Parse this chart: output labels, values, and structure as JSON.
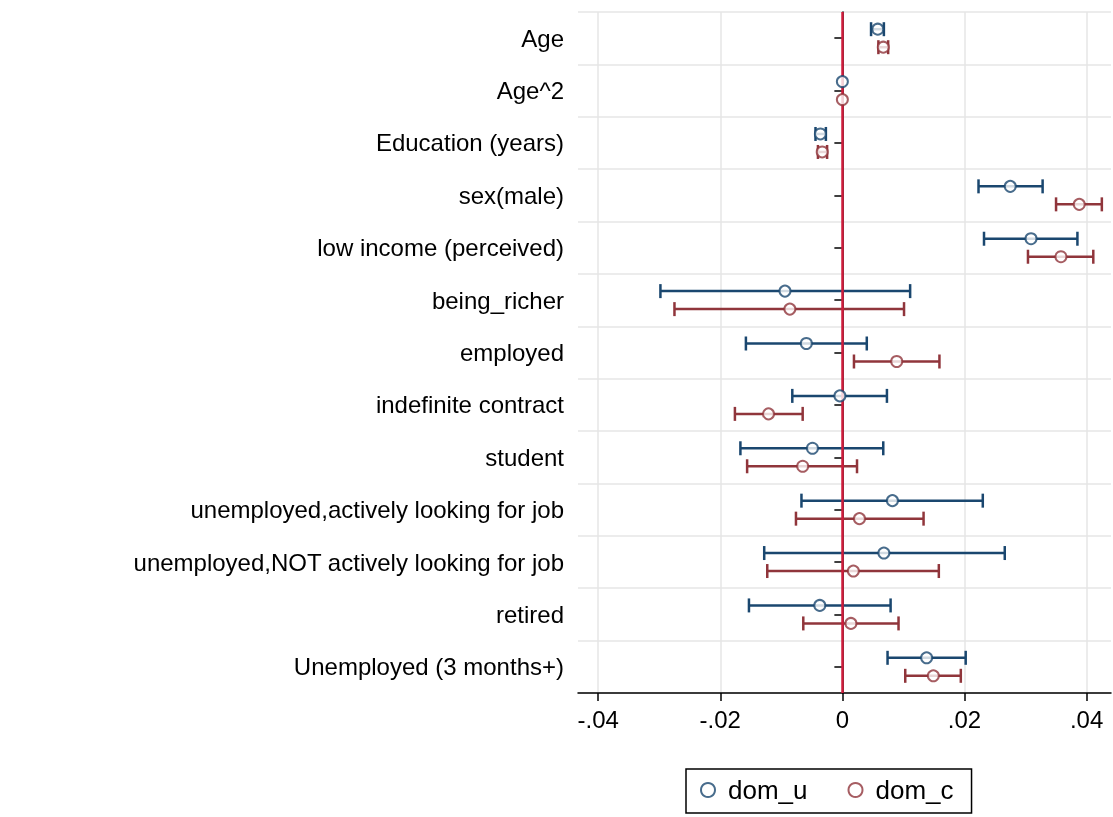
{
  "chart_data": {
    "type": "scatter",
    "orientation": "horizontal",
    "categories": [
      "Age",
      "Age^2",
      "Education (years)",
      "sex(male)",
      "low income (perceived)",
      "being_richer",
      "employed",
      "indefinite contract",
      "student",
      "unemployed,actively looking for job",
      "unemployed,NOT actively looking for job",
      "retired",
      "Unemployed (3 months+)"
    ],
    "series": [
      {
        "name": "dom_u",
        "color": "#1a476f",
        "values": [
          0.0058,
          0,
          -0.0036,
          0.0275,
          0.0309,
          -0.0094,
          -0.0059,
          -0.0004,
          -0.0049,
          0.0082,
          0.0068,
          -0.0037,
          0.0138
        ],
        "errors": [
          [
            0.0047,
            0.0068
          ],
          null,
          [
            -0.0044,
            -0.0027
          ],
          [
            0.0223,
            0.0328
          ],
          [
            0.0232,
            0.0385
          ],
          [
            -0.0298,
            0.0111
          ],
          [
            -0.0158,
            0.004
          ],
          [
            -0.0082,
            0.0073
          ],
          [
            -0.0167,
            0.0067
          ],
          [
            -0.0067,
            0.023
          ],
          [
            -0.0128,
            0.0266
          ],
          [
            -0.0153,
            0.0079
          ],
          [
            0.0074,
            0.0202
          ]
        ]
      },
      {
        "name": "dom_c",
        "color": "#90353b",
        "values": [
          0.0067,
          0,
          -0.0033,
          0.0388,
          0.0358,
          -0.0086,
          0.0089,
          -0.0121,
          -0.0065,
          0.0028,
          0.0018,
          0.0014,
          0.0149
        ],
        "errors": [
          [
            0.0059,
            0.0075
          ],
          null,
          [
            -0.004,
            -0.0025
          ],
          [
            0.035,
            0.0425
          ],
          [
            0.0304,
            0.0411
          ],
          [
            -0.0275,
            0.0101
          ],
          [
            0.0019,
            0.0159
          ],
          [
            -0.0176,
            -0.0065
          ],
          [
            -0.0156,
            0.0024
          ],
          [
            -0.0076,
            0.0133
          ],
          [
            -0.0123,
            0.0158
          ],
          [
            -0.0064,
            0.0092
          ],
          [
            0.0103,
            0.0194
          ]
        ]
      }
    ],
    "xlim": [
      -0.0433,
      0.044
    ],
    "xticks": [
      {
        "value": -0.04,
        "label": "-.04"
      },
      {
        "value": -0.02,
        "label": "-.02"
      },
      0,
      {
        "value": 0.02,
        "label": ".02"
      },
      {
        "value": 0.04,
        "label": ".04"
      }
    ],
    "ref_lines": [
      {
        "axis": "x",
        "value": 0,
        "color": "#d01c3c"
      }
    ],
    "grid": true,
    "legend": "bottom",
    "marker": "circle"
  }
}
